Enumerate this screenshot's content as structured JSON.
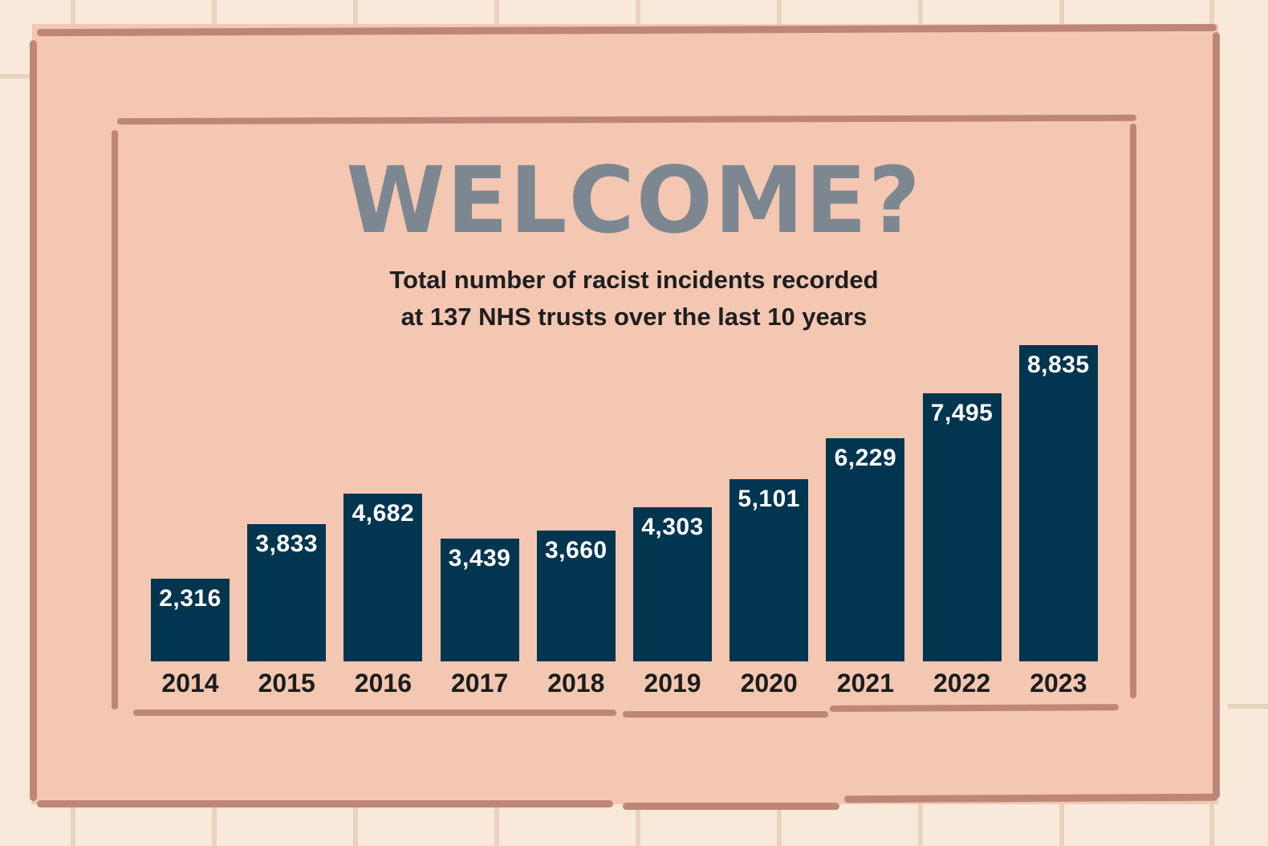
{
  "title": "WELCOME?",
  "subtitle_line1": "Total number of racist incidents recorded",
  "subtitle_line2": "at 137 NHS trusts over the last 10 years",
  "colors": {
    "background_tiles": "#f9e9da",
    "mat": "#f3c7b2",
    "mat_border": "#be8677",
    "bar": "#02354f",
    "title": "#7c8791",
    "text": "#1e1e1e"
  },
  "bars": [
    {
      "year": "2014",
      "label": "2,316"
    },
    {
      "year": "2015",
      "label": "3,833"
    },
    {
      "year": "2016",
      "label": "4,682"
    },
    {
      "year": "2017",
      "label": "3,439"
    },
    {
      "year": "2018",
      "label": "3,660"
    },
    {
      "year": "2019",
      "label": "4,303"
    },
    {
      "year": "2020",
      "label": "5,101"
    },
    {
      "year": "2021",
      "label": "6,229"
    },
    {
      "year": "2022",
      "label": "7,495"
    },
    {
      "year": "2023",
      "label": "8,835"
    }
  ],
  "chart_data": {
    "type": "bar",
    "title": "WELCOME?",
    "subtitle": "Total number of racist incidents recorded at 137 NHS trusts over the last 10 years",
    "categories": [
      "2014",
      "2015",
      "2016",
      "2017",
      "2018",
      "2019",
      "2020",
      "2021",
      "2022",
      "2023"
    ],
    "values": [
      2316,
      3833,
      4682,
      3439,
      3660,
      4303,
      5101,
      6229,
      7495,
      8835
    ],
    "xlabel": "",
    "ylabel": "",
    "data_labels": true,
    "grid": false,
    "legend": null,
    "ylim": [
      0,
      8835
    ]
  }
}
